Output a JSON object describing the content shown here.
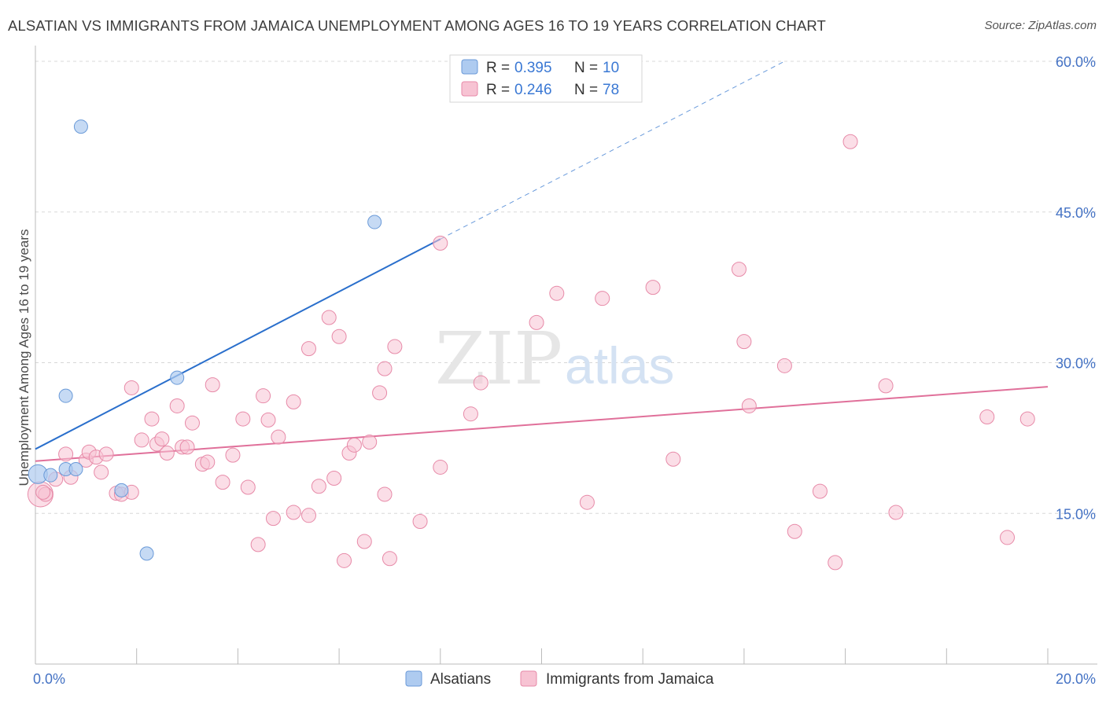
{
  "header": {
    "title": "ALSATIAN VS IMMIGRANTS FROM JAMAICA UNEMPLOYMENT AMONG AGES 16 TO 19 YEARS CORRELATION CHART",
    "source": "Source: ZipAtlas.com"
  },
  "watermark": {
    "zip": "ZIP",
    "atlas": "atlas"
  },
  "legend_top": {
    "rows": [
      {
        "r_label": "R = ",
        "r_value": "0.395",
        "n_label": "N = ",
        "n_value": "10"
      },
      {
        "r_label": "R = ",
        "r_value": "0.246",
        "n_label": "N = ",
        "n_value": "78"
      }
    ]
  },
  "colors": {
    "alsatians_fill": "#aecbf0",
    "alsatians_stroke": "#6a9ad8",
    "alsatians_line": "#2a6fcc",
    "jamaica_fill": "#f7c3d3",
    "jamaica_stroke": "#e78aa8",
    "jamaica_line": "#e0709a",
    "grid": "#d8d8d8",
    "tick_text": "#4472c4"
  },
  "chart_data": {
    "type": "scatter",
    "title": "ALSATIAN VS IMMIGRANTS FROM JAMAICA UNEMPLOYMENT AMONG AGES 16 TO 19 YEARS CORRELATION CHART",
    "xlabel": "",
    "ylabel": "Unemployment Among Ages 16 to 19 years",
    "xlim": [
      0,
      20
    ],
    "ylim": [
      0,
      60
    ],
    "x_tick_labels": [
      "0.0%",
      "20.0%"
    ],
    "y_ticks": [
      15,
      30,
      45,
      60
    ],
    "y_tick_labels": [
      "15.0%",
      "30.0%",
      "45.0%",
      "60.0%"
    ],
    "grid": true,
    "legend_position": "top-center",
    "series": [
      {
        "name": "Alsatians",
        "R": 0.395,
        "N": 10,
        "points": [
          [
            0.05,
            18.9
          ],
          [
            0.3,
            18.8
          ],
          [
            0.6,
            19.4
          ],
          [
            0.9,
            53.5
          ],
          [
            0.6,
            26.7
          ],
          [
            2.8,
            28.5
          ],
          [
            1.7,
            17.3
          ],
          [
            2.2,
            11.0
          ],
          [
            6.7,
            44.0
          ],
          [
            0.8,
            19.4
          ]
        ],
        "trend": {
          "x0": 0.0,
          "y0": 21.4,
          "x1": 8.0,
          "y1": 42.3,
          "dash_to_x": 14.8,
          "dash_to_y": 60.0
        }
      },
      {
        "name": "Immigrants from Jamaica",
        "R": 0.246,
        "N": 78,
        "points": [
          [
            0.1,
            16.9
          ],
          [
            0.2,
            16.9
          ],
          [
            0.4,
            18.4
          ],
          [
            0.6,
            20.9
          ],
          [
            0.7,
            18.6
          ],
          [
            1.0,
            20.3
          ],
          [
            1.06,
            21.1
          ],
          [
            1.2,
            20.6
          ],
          [
            1.3,
            19.1
          ],
          [
            1.4,
            20.9
          ],
          [
            1.6,
            17.0
          ],
          [
            1.7,
            16.9
          ],
          [
            1.9,
            17.1
          ],
          [
            1.9,
            27.5
          ],
          [
            2.1,
            22.3
          ],
          [
            2.3,
            24.4
          ],
          [
            2.4,
            21.9
          ],
          [
            2.5,
            22.4
          ],
          [
            2.6,
            21.0
          ],
          [
            2.8,
            25.7
          ],
          [
            2.9,
            21.6
          ],
          [
            3.0,
            21.6
          ],
          [
            3.1,
            24.0
          ],
          [
            3.3,
            19.9
          ],
          [
            3.4,
            20.1
          ],
          [
            3.5,
            27.8
          ],
          [
            3.7,
            18.1
          ],
          [
            3.9,
            20.8
          ],
          [
            4.1,
            24.4
          ],
          [
            4.2,
            17.6
          ],
          [
            4.4,
            11.9
          ],
          [
            4.5,
            26.7
          ],
          [
            4.6,
            24.3
          ],
          [
            4.7,
            14.5
          ],
          [
            4.8,
            22.6
          ],
          [
            5.1,
            15.1
          ],
          [
            5.1,
            26.1
          ],
          [
            5.4,
            14.8
          ],
          [
            5.4,
            31.4
          ],
          [
            5.6,
            17.7
          ],
          [
            5.8,
            34.5
          ],
          [
            5.9,
            18.5
          ],
          [
            6.0,
            32.6
          ],
          [
            6.1,
            10.3
          ],
          [
            6.2,
            21.0
          ],
          [
            6.3,
            21.8
          ],
          [
            6.5,
            12.2
          ],
          [
            6.6,
            22.1
          ],
          [
            6.8,
            27.0
          ],
          [
            6.9,
            29.4
          ],
          [
            6.9,
            16.9
          ],
          [
            7.0,
            10.5
          ],
          [
            7.1,
            31.6
          ],
          [
            7.6,
            14.2
          ],
          [
            8.0,
            41.9
          ],
          [
            8.0,
            19.6
          ],
          [
            8.6,
            24.9
          ],
          [
            8.8,
            28.0
          ],
          [
            9.9,
            34.0
          ],
          [
            10.3,
            36.9
          ],
          [
            10.9,
            16.1
          ],
          [
            11.2,
            36.4
          ],
          [
            12.2,
            37.5
          ],
          [
            12.6,
            20.4
          ],
          [
            13.9,
            39.3
          ],
          [
            14.0,
            32.1
          ],
          [
            14.1,
            25.7
          ],
          [
            14.8,
            29.7
          ],
          [
            15.0,
            13.2
          ],
          [
            15.5,
            17.2
          ],
          [
            15.8,
            10.1
          ],
          [
            16.1,
            52.0
          ],
          [
            16.8,
            27.7
          ],
          [
            17.0,
            15.1
          ],
          [
            18.8,
            24.6
          ],
          [
            19.2,
            12.6
          ],
          [
            19.6,
            24.4
          ],
          [
            0.15,
            17.1
          ]
        ],
        "trend": {
          "x0": 0.0,
          "y0": 20.2,
          "x1": 20.0,
          "y1": 27.6
        }
      }
    ]
  },
  "legend_bottom": {
    "items": [
      {
        "label": "Alsatians"
      },
      {
        "label": "Immigrants from Jamaica"
      }
    ]
  }
}
